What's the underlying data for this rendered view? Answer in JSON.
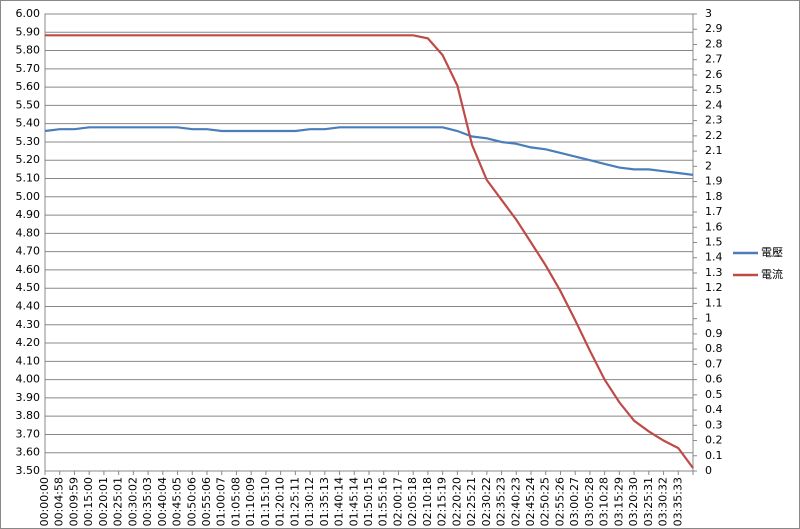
{
  "chart_data": {
    "type": "line",
    "categories": [
      "00:00:00",
      "00:04:58",
      "00:09:59",
      "00:15:00",
      "00:20:01",
      "00:25:01",
      "00:30:02",
      "00:35:03",
      "00:40:04",
      "00:45:05",
      "00:50:06",
      "00:55:06",
      "01:00:07",
      "01:05:08",
      "01:10:09",
      "01:15:10",
      "01:20:10",
      "01:25:11",
      "01:30:12",
      "01:35:13",
      "01:40:14",
      "01:45:14",
      "01:50:15",
      "01:55:16",
      "02:00:17",
      "02:05:18",
      "02:10:18",
      "02:15:19",
      "02:20:20",
      "02:25:21",
      "02:30:22",
      "02:35:23",
      "02:40:23",
      "02:45:24",
      "02:50:25",
      "02:55:26",
      "03:00:27",
      "03:05:28",
      "03:10:28",
      "03:15:29",
      "03:20:30",
      "03:25:31",
      "03:30:32",
      "03:35:33",
      null
    ],
    "series": [
      {
        "name": "電壓",
        "color": "#4a7ebb",
        "values": [
          5.36,
          5.37,
          5.37,
          5.38,
          5.38,
          5.38,
          5.38,
          5.38,
          5.38,
          5.38,
          5.37,
          5.37,
          5.36,
          5.36,
          5.36,
          5.36,
          5.36,
          5.36,
          5.37,
          5.37,
          5.38,
          5.38,
          5.38,
          5.38,
          5.38,
          5.38,
          5.38,
          5.38,
          5.36,
          5.33,
          5.32,
          5.3,
          5.29,
          5.27,
          5.26,
          5.24,
          5.22,
          5.2,
          5.18,
          5.16,
          5.15,
          5.15,
          5.14,
          5.13,
          5.12
        ]
      },
      {
        "name": "電流",
        "color": "#be4b48",
        "axis": "y2",
        "values": [
          2.86,
          2.86,
          2.86,
          2.86,
          2.86,
          2.86,
          2.86,
          2.86,
          2.86,
          2.86,
          2.86,
          2.86,
          2.86,
          2.86,
          2.86,
          2.86,
          2.86,
          2.86,
          2.86,
          2.86,
          2.86,
          2.86,
          2.86,
          2.86,
          2.86,
          2.86,
          2.84,
          2.73,
          2.53,
          2.14,
          1.91,
          1.78,
          1.65,
          1.5,
          1.35,
          1.18,
          0.99,
          0.79,
          0.6,
          0.45,
          0.33,
          0.26,
          0.2,
          0.15,
          0.02
        ]
      }
    ],
    "ylim": [
      3.5,
      6.0
    ],
    "yticks": [
      {
        "value": 3.5,
        "label": "3.50"
      },
      {
        "value": 3.6,
        "label": "3.60"
      },
      {
        "value": 3.7,
        "label": "3.70"
      },
      {
        "value": 3.8,
        "label": "3.80"
      },
      {
        "value": 3.9,
        "label": "3.90"
      },
      {
        "value": 4.0,
        "label": "4.00"
      },
      {
        "value": 4.1,
        "label": "4.10"
      },
      {
        "value": 4.2,
        "label": "4.20"
      },
      {
        "value": 4.3,
        "label": "4.30"
      },
      {
        "value": 4.4,
        "label": "4.40"
      },
      {
        "value": 4.5,
        "label": "4.50"
      },
      {
        "value": 4.6,
        "label": "4.60"
      },
      {
        "value": 4.7,
        "label": "4.70"
      },
      {
        "value": 4.8,
        "label": "4.80"
      },
      {
        "value": 4.9,
        "label": "4.90"
      },
      {
        "value": 5.0,
        "label": "5.00"
      },
      {
        "value": 5.1,
        "label": "5.10"
      },
      {
        "value": 5.2,
        "label": "5.20"
      },
      {
        "value": 5.3,
        "label": "5.30"
      },
      {
        "value": 5.4,
        "label": "5.40"
      },
      {
        "value": 5.5,
        "label": "5.50"
      },
      {
        "value": 5.6,
        "label": "5.60"
      },
      {
        "value": 5.7,
        "label": "5.70"
      },
      {
        "value": 5.8,
        "label": "5.80"
      },
      {
        "value": 5.9,
        "label": "5.90"
      },
      {
        "value": 6.0,
        "label": "6.00"
      }
    ],
    "y2lim": [
      0,
      3
    ],
    "y2ticks": [
      0,
      0.1,
      0.2,
      0.3,
      0.4,
      0.5,
      0.6,
      0.7,
      0.8,
      0.9,
      1,
      1.1,
      1.2,
      1.3,
      1.4,
      1.5,
      1.6,
      1.7,
      1.8,
      1.9,
      2,
      2.1,
      2.2,
      2.3,
      2.4,
      2.5,
      2.6,
      2.7,
      2.8,
      2.9,
      3
    ],
    "grid": true,
    "legend": "right"
  }
}
